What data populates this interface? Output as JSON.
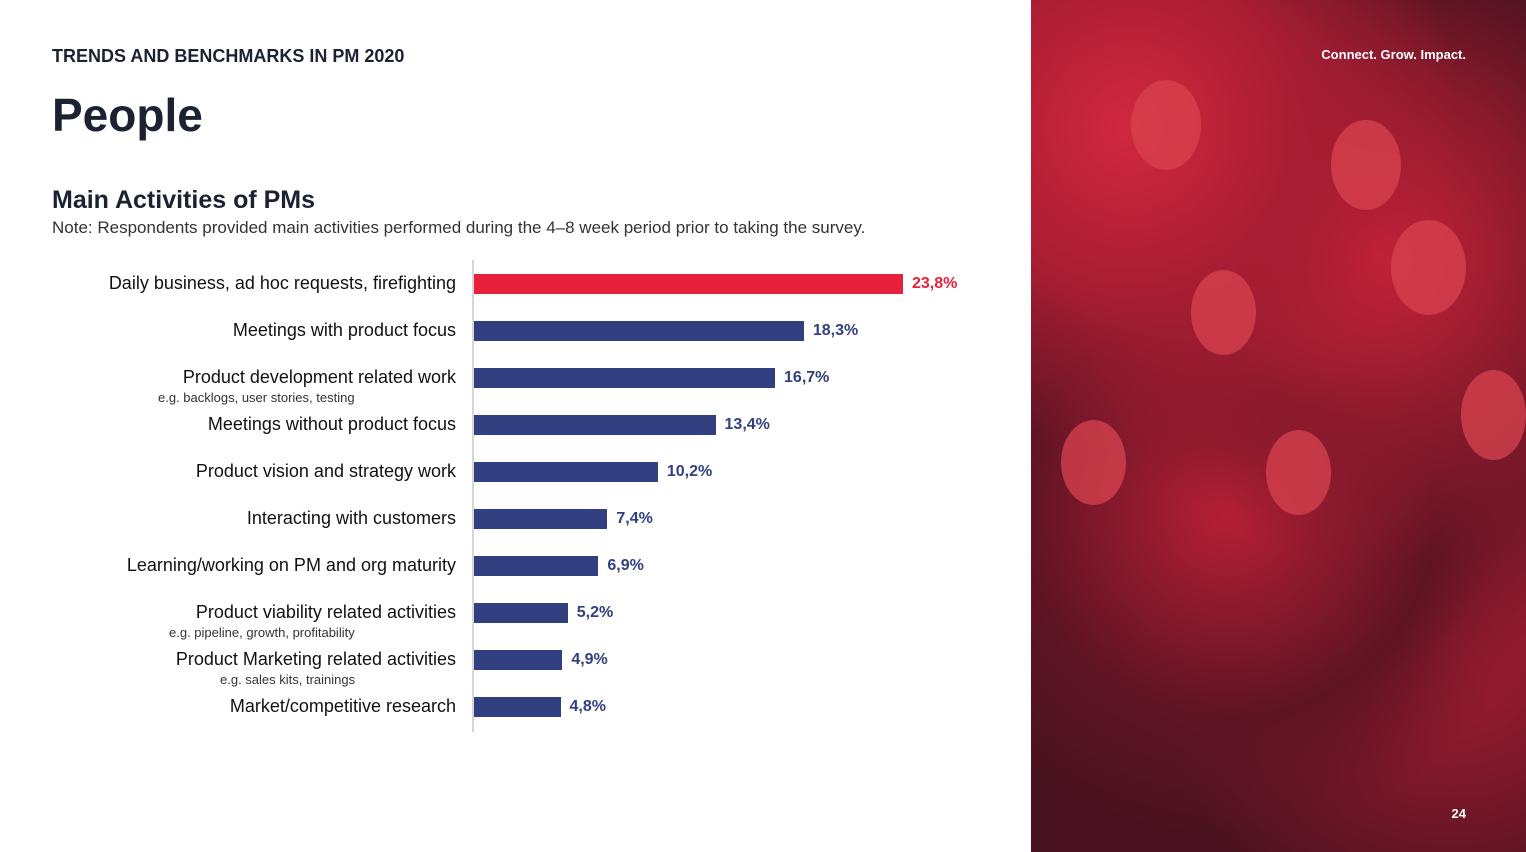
{
  "header": {
    "kicker": "TRENDS AND BENCHMARKS IN PM 2020",
    "title": "People"
  },
  "side_panel": {
    "tagline": "Connect. Grow. Impact.",
    "page_number": "24"
  },
  "chart_data": {
    "type": "bar",
    "orientation": "horizontal",
    "title": "Main Activities of PMs",
    "note": "Note: Respondents provided main activities performed during the 4–8 week period prior to taking the survey.",
    "categories": [
      "Daily business, ad hoc requests, firefighting",
      "Meetings with product focus",
      "Product development related work",
      "Meetings without product focus",
      "Product vision and strategy work",
      "Interacting with customers",
      "Learning/working on PM and org maturity",
      "Product viability related activities",
      "Product Marketing related activities",
      "Market/competitive research"
    ],
    "sublabels": [
      "",
      "",
      "e.g. backlogs, user stories, testing",
      "",
      "",
      "",
      "",
      "e.g. pipeline, growth, profitability",
      "e.g. sales kits, trainings",
      ""
    ],
    "values": [
      23.8,
      18.3,
      16.7,
      13.4,
      10.2,
      7.4,
      6.9,
      5.2,
      4.9,
      4.8
    ],
    "value_labels": [
      "23,8%",
      "18,3%",
      "16,7%",
      "13,4%",
      "10,2%",
      "7,4%",
      "6,9%",
      "5,2%",
      "4,9%",
      "4,8%"
    ],
    "highlight_color": "#e8213a",
    "bar_color": "#323f80",
    "unit": "%"
  }
}
